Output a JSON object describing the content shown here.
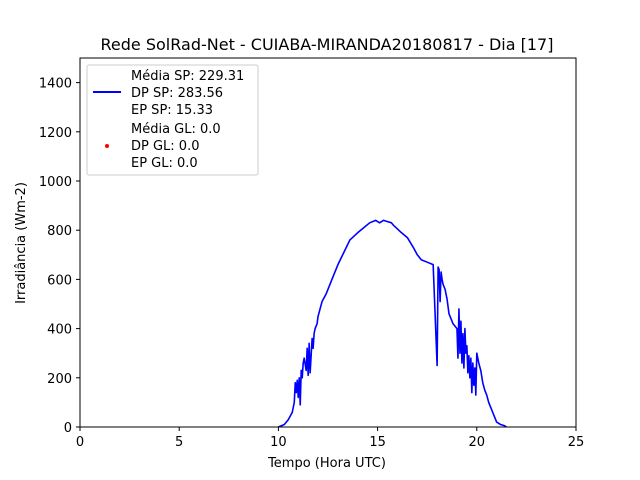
{
  "chart_data": {
    "type": "line",
    "title": "Rede SolRad-Net - CUIABA-MIRANDA20180817 - Dia [17]",
    "xlabel": "Tempo (Hora UTC)",
    "ylabel": "Irradiância (Wm-2)",
    "xlim": [
      0,
      25
    ],
    "ylim": [
      0,
      1500
    ],
    "xticks": [
      0,
      5,
      10,
      15,
      20,
      25
    ],
    "yticks": [
      0,
      200,
      400,
      600,
      800,
      1000,
      1200,
      1400
    ],
    "grid": false,
    "legend_position": "upper-left",
    "series": [
      {
        "name_lines": [
          "Média SP: 229.31",
          "DP SP: 283.56",
          "EP SP: 15.33"
        ],
        "color": "#0000ff",
        "marker": "line",
        "x": [
          10.0,
          10.3,
          10.5,
          10.7,
          10.8,
          10.85,
          10.9,
          10.95,
          11.0,
          11.05,
          11.1,
          11.15,
          11.2,
          11.25,
          11.3,
          11.4,
          11.45,
          11.5,
          11.55,
          11.6,
          11.7,
          11.75,
          11.8,
          11.85,
          11.9,
          11.95,
          12.0,
          12.1,
          12.2,
          12.4,
          12.6,
          12.8,
          13.0,
          13.3,
          13.6,
          14.0,
          14.3,
          14.6,
          14.9,
          15.1,
          15.3,
          15.5,
          15.7,
          15.8,
          16.0,
          16.2,
          16.5,
          16.8,
          17.0,
          17.2,
          17.5,
          17.8,
          18.0,
          18.05,
          18.1,
          18.15,
          18.2,
          18.25,
          18.3,
          18.4,
          18.5,
          18.6,
          18.8,
          19.0,
          19.05,
          19.1,
          19.15,
          19.2,
          19.25,
          19.3,
          19.35,
          19.4,
          19.45,
          19.5,
          19.55,
          19.6,
          19.65,
          19.7,
          19.75,
          19.8,
          19.85,
          19.9,
          19.95,
          20.0,
          20.1,
          20.2,
          20.3,
          20.4,
          20.5,
          20.6,
          20.7,
          20.8,
          20.9,
          21.0,
          21.2,
          21.4,
          21.5
        ],
        "y": [
          0,
          10,
          30,
          60,
          100,
          180,
          140,
          190,
          120,
          200,
          90,
          230,
          200,
          260,
          280,
          230,
          320,
          210,
          340,
          220,
          360,
          320,
          380,
          400,
          410,
          420,
          450,
          480,
          510,
          540,
          580,
          620,
          660,
          710,
          760,
          790,
          810,
          830,
          840,
          830,
          840,
          835,
          830,
          820,
          805,
          790,
          770,
          730,
          700,
          680,
          670,
          660,
          250,
          650,
          640,
          510,
          630,
          600,
          580,
          560,
          520,
          460,
          420,
          400,
          280,
          480,
          300,
          430,
          260,
          380,
          240,
          400,
          300,
          330,
          220,
          290,
          200,
          280,
          140,
          260,
          170,
          240,
          130,
          300,
          260,
          230,
          180,
          150,
          130,
          100,
          80,
          60,
          40,
          20,
          10,
          5,
          0
        ]
      },
      {
        "name_lines": [
          "Média GL: 0.0",
          "DP GL: 0.0",
          "EP GL: 0.0"
        ],
        "color": "#ff0000",
        "marker": "point",
        "x": [],
        "y": []
      }
    ]
  }
}
